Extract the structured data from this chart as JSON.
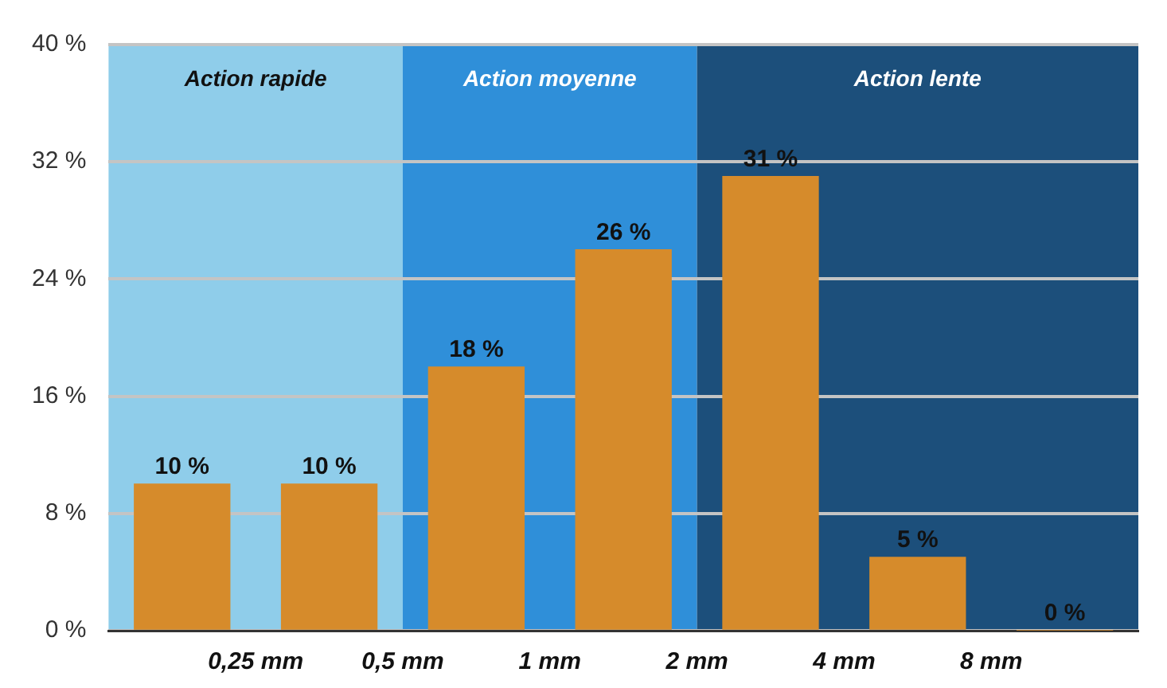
{
  "chart_data": {
    "type": "histogram",
    "bins": [
      0.125,
      0.25,
      0.5,
      1,
      2,
      4,
      8,
      16
    ],
    "values": [
      10,
      10,
      18,
      26,
      31,
      5,
      0
    ],
    "value_labels": [
      "10 %",
      "10 %",
      "18 %",
      "26 %",
      "31 %",
      "5 %",
      "0 %"
    ],
    "color": "#d68b2b",
    "log": "x",
    "xlim": [
      0.125,
      16
    ],
    "xticks": [
      {
        "value": 0.25,
        "label": "0,25 mm"
      },
      {
        "value": 0.5,
        "label": "0,5 mm"
      },
      {
        "value": 1,
        "label": "1 mm"
      },
      {
        "value": 2,
        "label": "2 mm"
      },
      {
        "value": 4,
        "label": "4 mm"
      },
      {
        "value": 8,
        "label": "8 mm"
      }
    ],
    "ylim": [
      0,
      40
    ],
    "yticks": [
      {
        "value": 0,
        "label": "0 %"
      },
      {
        "value": 8,
        "label": "8 %"
      },
      {
        "value": 16,
        "label": "16 %"
      },
      {
        "value": 24,
        "label": "24 %"
      },
      {
        "value": 32,
        "label": "32 %"
      },
      {
        "value": 40,
        "label": "40 %"
      }
    ],
    "grid": "y",
    "bands": [
      {
        "axis": "x",
        "from": 0.125,
        "to": 0.5,
        "label": "Action rapide",
        "color": "#8fcdea"
      },
      {
        "axis": "x",
        "from": 0.5,
        "to": 2,
        "label": "Action moyenne",
        "color": "#2f8fd9"
      },
      {
        "axis": "x",
        "from": 2,
        "to": 16,
        "label": "Action lente",
        "color": "#1c4f7b"
      }
    ]
  }
}
